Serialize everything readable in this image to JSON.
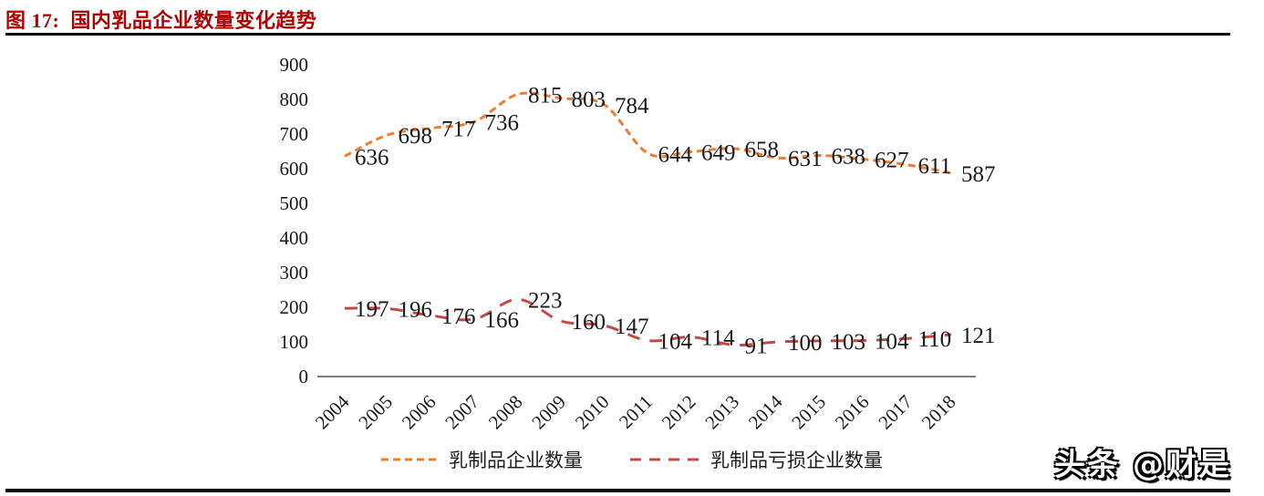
{
  "header": {
    "figure_title": "图 17:  国内乳品企业数量变化趋势"
  },
  "watermark": "头条 @财是",
  "colors": {
    "title_red": "#B00000",
    "series1_orange": "#ED7D31",
    "series2_red": "#BE4B48",
    "axis_line_gray": "#7f7f7f",
    "data_label": "#1a1a1a"
  },
  "chart_data": {
    "type": "line",
    "title": "国内乳品企业数量变化趋势",
    "smoothed": true,
    "line_style": "dashed",
    "grid": false,
    "legend_position": "bottom",
    "xlabel": "",
    "ylabel": "",
    "ylim": [
      0,
      900
    ],
    "yticks": [
      0,
      100,
      200,
      300,
      400,
      500,
      600,
      700,
      800,
      900
    ],
    "categories": [
      "2004",
      "2005",
      "2006",
      "2007",
      "2008",
      "2009",
      "2010",
      "2011",
      "2012",
      "2013",
      "2014",
      "2015",
      "2016",
      "2017",
      "2018"
    ],
    "series": [
      {
        "name": "乳制品企业数量",
        "color": "#ED7D31",
        "dash_pattern": "8 5",
        "values": [
          636,
          698,
          717,
          736,
          815,
          803,
          784,
          644,
          649,
          658,
          631,
          638,
          627,
          611,
          587
        ]
      },
      {
        "name": "乳制品亏损企业数量",
        "color": "#BE4B48",
        "dash_pattern": "14 11",
        "values": [
          197,
          196,
          176,
          166,
          223,
          160,
          147,
          104,
          114,
          91,
          100,
          103,
          104,
          110,
          121
        ]
      }
    ]
  }
}
